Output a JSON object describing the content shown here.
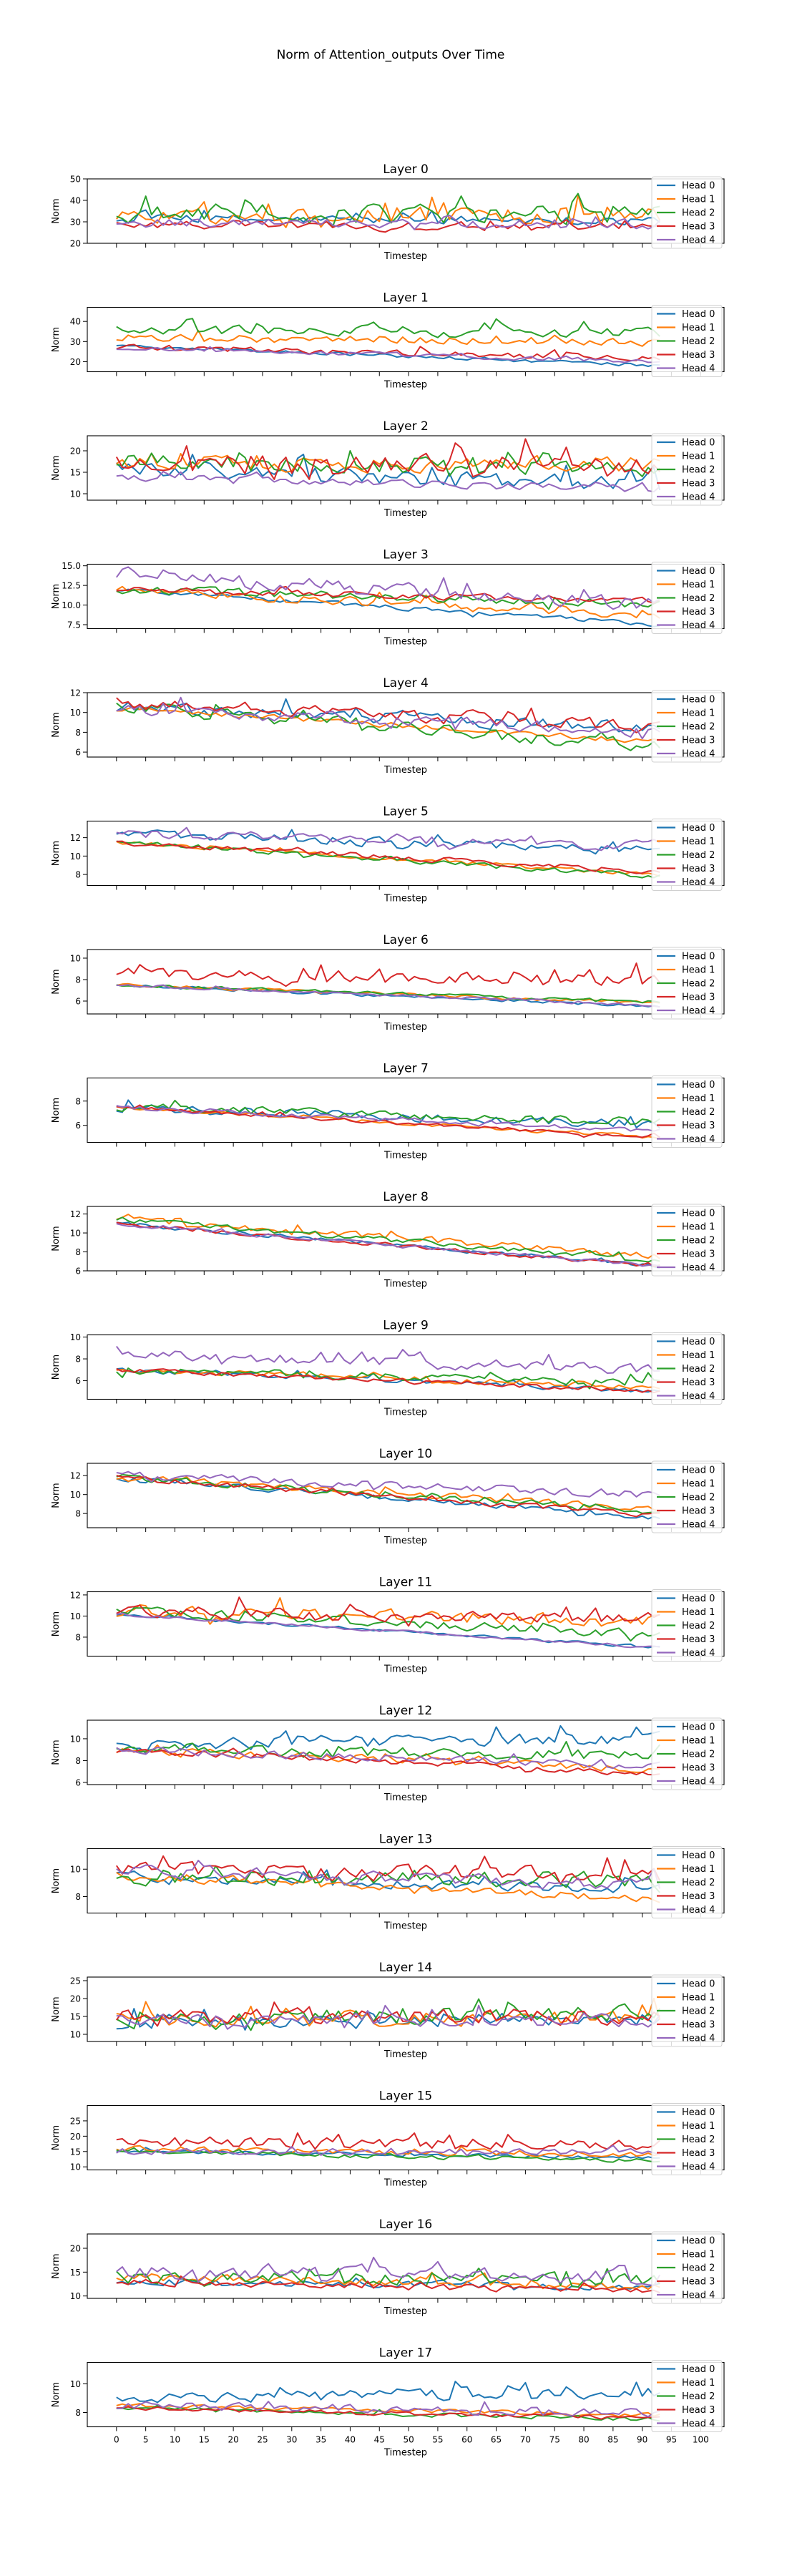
{
  "figure": {
    "suptitle": "Norm of Attention_outputs Over Time"
  },
  "chart_data": {
    "type": "line",
    "xlabel": "Timestep",
    "ylabel": "Norm",
    "xlim": [
      -5,
      104
    ],
    "x_ticks": [
      0,
      5,
      10,
      15,
      20,
      25,
      30,
      35,
      40,
      45,
      50,
      55,
      60,
      65,
      70,
      75,
      80,
      85,
      90,
      95,
      100
    ],
    "x_tick_labels": [
      "0",
      "5",
      "10",
      "15",
      "20",
      "25",
      "30",
      "35",
      "40",
      "45",
      "50",
      "55",
      "60",
      "65",
      "70",
      "75",
      "80",
      "85",
      "90",
      "95",
      "100"
    ],
    "x_range": [
      0,
      93
    ],
    "grid": false,
    "legend_position": "right",
    "series_names": [
      "Head 0",
      "Head 1",
      "Head 2",
      "Head 3",
      "Head 4"
    ],
    "series_colors": [
      "#1f77b4",
      "#ff7f0e",
      "#2ca02c",
      "#d62728",
      "#9467bd"
    ],
    "panels": [
      {
        "title": "Layer 0",
        "ylim": [
          20,
          50
        ],
        "yticks": [
          20,
          30,
          40,
          50
        ],
        "series": [
          {
            "start": 31,
            "end": 31,
            "noise": 3,
            "spikes": 0.1
          },
          {
            "start": 32,
            "end": 33,
            "noise": 5,
            "spikes": 0.3
          },
          {
            "start": 34,
            "end": 33,
            "noise": 6,
            "spikes": 0.3
          },
          {
            "start": 29,
            "end": 27,
            "noise": 3,
            "spikes": 0.1
          },
          {
            "start": 30,
            "end": 29,
            "noise": 3,
            "spikes": 0.1
          }
        ]
      },
      {
        "title": "Layer 1",
        "ylim": [
          15,
          47
        ],
        "yticks": [
          20,
          30,
          40
        ],
        "series": [
          {
            "start": 28,
            "end": 18,
            "noise": 1.2,
            "spikes": 0
          },
          {
            "start": 32,
            "end": 30,
            "noise": 3,
            "spikes": 0.1
          },
          {
            "start": 36,
            "end": 34,
            "noise": 3.5,
            "spikes": 0.2
          },
          {
            "start": 27,
            "end": 22,
            "noise": 2,
            "spikes": 0.1
          },
          {
            "start": 27,
            "end": 20,
            "noise": 1.5,
            "spikes": 0.1
          }
        ]
      },
      {
        "title": "Layer 2",
        "ylim": [
          8.5,
          23.5
        ],
        "yticks": [
          10,
          15,
          20
        ],
        "series": [
          {
            "start": 16,
            "end": 12,
            "noise": 2.5,
            "spikes": 0.2
          },
          {
            "start": 17,
            "end": 17,
            "noise": 2.5,
            "spikes": 0.2
          },
          {
            "start": 18,
            "end": 16,
            "noise": 3,
            "spikes": 0.2
          },
          {
            "start": 17,
            "end": 17,
            "noise": 3,
            "spikes": 0.2
          },
          {
            "start": 14,
            "end": 11,
            "noise": 1.2,
            "spikes": 0.1
          }
        ]
      },
      {
        "title": "Layer 3",
        "ylim": [
          7,
          15.2
        ],
        "yticks": [
          7.5,
          10.0,
          12.5,
          15.0
        ],
        "series": [
          {
            "start": 12,
            "end": 7.5,
            "noise": 0.4,
            "spikes": 0.05
          },
          {
            "start": 12,
            "end": 8.5,
            "noise": 0.8,
            "spikes": 0.1
          },
          {
            "start": 12,
            "end": 10,
            "noise": 0.8,
            "spikes": 0.1
          },
          {
            "start": 12,
            "end": 10.5,
            "noise": 0.6,
            "spikes": 0.1
          },
          {
            "start": 14,
            "end": 10,
            "noise": 1.2,
            "spikes": 0.1
          }
        ]
      },
      {
        "title": "Layer 4",
        "ylim": [
          5.5,
          12
        ],
        "yticks": [
          6,
          8,
          10,
          12
        ],
        "series": [
          {
            "start": 10.5,
            "end": 8.5,
            "noise": 0.9,
            "spikes": 0.1
          },
          {
            "start": 10.5,
            "end": 7,
            "noise": 0.4,
            "spikes": 0.05
          },
          {
            "start": 10.5,
            "end": 6.5,
            "noise": 0.9,
            "spikes": 0.1
          },
          {
            "start": 11,
            "end": 8.5,
            "noise": 0.9,
            "spikes": 0.1
          },
          {
            "start": 10.5,
            "end": 8,
            "noise": 0.8,
            "spikes": 0.1
          }
        ]
      },
      {
        "title": "Layer 5",
        "ylim": [
          6.8,
          13.8
        ],
        "yticks": [
          8,
          10,
          12
        ],
        "series": [
          {
            "start": 12.5,
            "end": 10.5,
            "noise": 0.7,
            "spikes": 0.1
          },
          {
            "start": 11.5,
            "end": 8,
            "noise": 0.3,
            "spikes": 0.05
          },
          {
            "start": 11.5,
            "end": 7.8,
            "noise": 0.4,
            "spikes": 0.05
          },
          {
            "start": 11.5,
            "end": 8.3,
            "noise": 0.4,
            "spikes": 0.05
          },
          {
            "start": 12.5,
            "end": 11,
            "noise": 0.7,
            "spikes": 0.1
          }
        ]
      },
      {
        "title": "Layer 6",
        "ylim": [
          4.8,
          10.8
        ],
        "yticks": [
          6,
          8,
          10
        ],
        "series": [
          {
            "start": 7.5,
            "end": 5.5,
            "noise": 0.2,
            "spikes": 0.05
          },
          {
            "start": 7.5,
            "end": 5.8,
            "noise": 0.2,
            "spikes": 0.03
          },
          {
            "start": 7.5,
            "end": 5.9,
            "noise": 0.2,
            "spikes": 0.03
          },
          {
            "start": 8.5,
            "end": 8,
            "noise": 0.8,
            "spikes": 0.1
          },
          {
            "start": 7.5,
            "end": 5.6,
            "noise": 0.2,
            "spikes": 0.03
          }
        ]
      },
      {
        "title": "Layer 7",
        "ylim": [
          4.6,
          9.9
        ],
        "yticks": [
          6,
          8
        ],
        "series": [
          {
            "start": 7.5,
            "end": 6,
            "noise": 0.5,
            "spikes": 0.1
          },
          {
            "start": 7.5,
            "end": 5,
            "noise": 0.2,
            "spikes": 0.03
          },
          {
            "start": 7.5,
            "end": 6.2,
            "noise": 0.5,
            "spikes": 0.1
          },
          {
            "start": 7.5,
            "end": 5,
            "noise": 0.2,
            "spikes": 0.03
          },
          {
            "start": 7.5,
            "end": 5.5,
            "noise": 0.3,
            "spikes": 0.05
          }
        ]
      },
      {
        "title": "Layer 8",
        "ylim": [
          6,
          12.8
        ],
        "yticks": [
          6,
          8,
          10,
          12
        ],
        "series": [
          {
            "start": 11,
            "end": 6.5,
            "noise": 0.3,
            "spikes": 0.05
          },
          {
            "start": 11.5,
            "end": 7.5,
            "noise": 0.5,
            "spikes": 0.1
          },
          {
            "start": 11.5,
            "end": 7,
            "noise": 0.4,
            "spikes": 0.05
          },
          {
            "start": 11,
            "end": 6.5,
            "noise": 0.3,
            "spikes": 0.05
          },
          {
            "start": 11,
            "end": 6.5,
            "noise": 0.3,
            "spikes": 0.05
          }
        ]
      },
      {
        "title": "Layer 9",
        "ylim": [
          4.3,
          10.2
        ],
        "yticks": [
          6,
          8,
          10
        ],
        "series": [
          {
            "start": 7,
            "end": 5,
            "noise": 0.3,
            "spikes": 0.05
          },
          {
            "start": 7,
            "end": 5.5,
            "noise": 0.4,
            "spikes": 0.05
          },
          {
            "start": 7,
            "end": 5.8,
            "noise": 0.5,
            "spikes": 0.1
          },
          {
            "start": 7,
            "end": 5,
            "noise": 0.3,
            "spikes": 0.05
          },
          {
            "start": 8.5,
            "end": 7,
            "noise": 0.7,
            "spikes": 0.1
          }
        ]
      },
      {
        "title": "Layer 10",
        "ylim": [
          6.5,
          13.3
        ],
        "yticks": [
          8,
          10,
          12
        ],
        "series": [
          {
            "start": 11.8,
            "end": 7.5,
            "noise": 0.4,
            "spikes": 0.05
          },
          {
            "start": 11.8,
            "end": 8.5,
            "noise": 0.5,
            "spikes": 0.1
          },
          {
            "start": 11.8,
            "end": 8.2,
            "noise": 0.5,
            "spikes": 0.1
          },
          {
            "start": 11.8,
            "end": 7.8,
            "noise": 0.4,
            "spikes": 0.05
          },
          {
            "start": 12,
            "end": 10,
            "noise": 0.6,
            "spikes": 0.1
          }
        ]
      },
      {
        "title": "Layer 11",
        "ylim": [
          6.2,
          12.3
        ],
        "yticks": [
          8,
          10,
          12
        ],
        "series": [
          {
            "start": 10.2,
            "end": 7,
            "noise": 0.2,
            "spikes": 0.03
          },
          {
            "start": 10.5,
            "end": 9.5,
            "noise": 0.9,
            "spikes": 0.1
          },
          {
            "start": 10.5,
            "end": 8.2,
            "noise": 0.6,
            "spikes": 0.1
          },
          {
            "start": 10.5,
            "end": 9.8,
            "noise": 0.8,
            "spikes": 0.15
          },
          {
            "start": 10.2,
            "end": 7,
            "noise": 0.2,
            "spikes": 0.03
          }
        ]
      },
      {
        "title": "Layer 12",
        "ylim": [
          5.8,
          11.7
        ],
        "yticks": [
          6,
          8,
          10
        ],
        "series": [
          {
            "start": 9.5,
            "end": 10,
            "noise": 0.8,
            "spikes": 0.1
          },
          {
            "start": 9,
            "end": 7.2,
            "noise": 0.5,
            "spikes": 0.1
          },
          {
            "start": 9,
            "end": 8.5,
            "noise": 0.7,
            "spikes": 0.1
          },
          {
            "start": 9,
            "end": 6.8,
            "noise": 0.4,
            "spikes": 0.05
          },
          {
            "start": 9,
            "end": 7.5,
            "noise": 0.5,
            "spikes": 0.05
          }
        ]
      },
      {
        "title": "Layer 13",
        "ylim": [
          6.8,
          11.5
        ],
        "yticks": [
          8,
          10
        ],
        "series": [
          {
            "start": 9.5,
            "end": 8.5,
            "noise": 0.5,
            "spikes": 0.1
          },
          {
            "start": 9.5,
            "end": 7.8,
            "noise": 0.4,
            "spikes": 0.05
          },
          {
            "start": 9.5,
            "end": 9.2,
            "noise": 0.8,
            "spikes": 0.1
          },
          {
            "start": 10,
            "end": 9.5,
            "noise": 0.8,
            "spikes": 0.15
          },
          {
            "start": 10,
            "end": 8.8,
            "noise": 0.6,
            "spikes": 0.1
          }
        ]
      },
      {
        "title": "Layer 14",
        "ylim": [
          8,
          26
        ],
        "yticks": [
          10,
          15,
          20,
          25
        ],
        "series": [
          {
            "start": 13,
            "end": 14,
            "noise": 2.5,
            "spikes": 0.2
          },
          {
            "start": 14,
            "end": 15,
            "noise": 3,
            "spikes": 0.2
          },
          {
            "start": 14,
            "end": 16,
            "noise": 3,
            "spikes": 0.2
          },
          {
            "start": 15,
            "end": 15,
            "noise": 3,
            "spikes": 0.2
          },
          {
            "start": 14,
            "end": 14,
            "noise": 2.5,
            "spikes": 0.2
          }
        ]
      },
      {
        "title": "Layer 15",
        "ylim": [
          9,
          30
        ],
        "yticks": [
          10,
          15,
          20,
          25
        ],
        "series": [
          {
            "start": 15,
            "end": 13,
            "noise": 0.8,
            "spikes": 0.1
          },
          {
            "start": 16,
            "end": 14,
            "noise": 1.5,
            "spikes": 0.1
          },
          {
            "start": 15,
            "end": 12,
            "noise": 1,
            "spikes": 0.1
          },
          {
            "start": 18,
            "end": 17,
            "noise": 2.5,
            "spikes": 0.2
          },
          {
            "start": 15,
            "end": 15,
            "noise": 1.5,
            "spikes": 0.15
          }
        ]
      },
      {
        "title": "Layer 16",
        "ylim": [
          9.5,
          23
        ],
        "yticks": [
          10,
          15,
          20
        ],
        "series": [
          {
            "start": 13,
            "end": 12,
            "noise": 1,
            "spikes": 0.1
          },
          {
            "start": 14,
            "end": 12,
            "noise": 1.2,
            "spikes": 0.1
          },
          {
            "start": 14,
            "end": 13,
            "noise": 2,
            "spikes": 0.2
          },
          {
            "start": 13,
            "end": 11,
            "noise": 1,
            "spikes": 0.1
          },
          {
            "start": 15,
            "end": 14,
            "noise": 2,
            "spikes": 0.2
          }
        ]
      },
      {
        "title": "Layer 17",
        "ylim": [
          7,
          11.5
        ],
        "yticks": [
          8,
          10
        ],
        "series": [
          {
            "start": 9,
            "end": 9.5,
            "noise": 0.6,
            "spikes": 0.1
          },
          {
            "start": 8.5,
            "end": 7.8,
            "noise": 0.2,
            "spikes": 0.03
          },
          {
            "start": 8.3,
            "end": 7.5,
            "noise": 0.2,
            "spikes": 0.03
          },
          {
            "start": 8.3,
            "end": 7.6,
            "noise": 0.2,
            "spikes": 0.03
          },
          {
            "start": 8.5,
            "end": 8,
            "noise": 0.4,
            "spikes": 0.05
          }
        ]
      }
    ]
  }
}
